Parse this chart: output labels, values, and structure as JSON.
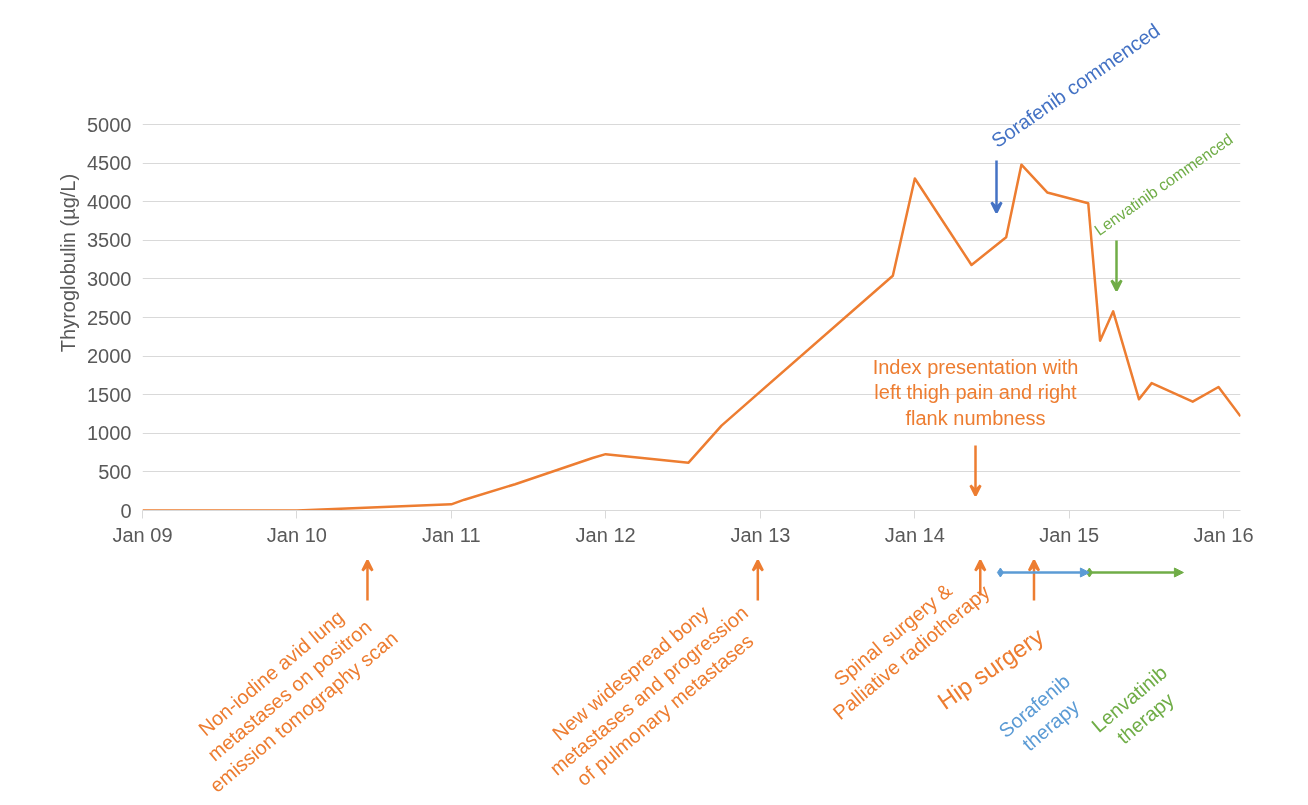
{
  "chart_data": {
    "type": "line",
    "ylabel": "Thyroglobulin (µg/L)",
    "x": [
      "2009-01-01",
      "2010-01-01",
      "2011-01-01",
      "2011-02-01",
      "2011-06-01",
      "2011-12-01",
      "2012-01-01",
      "2012-07-15",
      "2012-10-01",
      "2013-11-10",
      "2014-01-01",
      "2014-05-15",
      "2014-08-05",
      "2014-09-10",
      "2014-11-10",
      "2015-02-15",
      "2015-03-15",
      "2015-04-15",
      "2015-06-15",
      "2015-07-15",
      "2015-10-20",
      "2015-12-20",
      "2016-02-10"
    ],
    "series": [
      {
        "color": "#ed7d31",
        "values": [
          0,
          0,
          80,
          140,
          340,
          680,
          730,
          620,
          1100,
          3040,
          4300,
          3180,
          3540,
          4480,
          4120,
          3980,
          2200,
          2580,
          1440,
          1650,
          1410,
          1600,
          1220
        ]
      }
    ],
    "xlim": [
      "2009-01-01",
      "2016-02-10"
    ],
    "xticks": [
      {
        "value": "2009-01-01",
        "label": "Jan 09"
      },
      {
        "value": "2010-01-01",
        "label": "Jan 10"
      },
      {
        "value": "2011-01-01",
        "label": "Jan 11"
      },
      {
        "value": "2012-01-01",
        "label": "Jan 12"
      },
      {
        "value": "2013-01-01",
        "label": "Jan 13"
      },
      {
        "value": "2014-01-01",
        "label": "Jan 14"
      },
      {
        "value": "2015-01-01",
        "label": "Jan 15"
      },
      {
        "value": "2016-01-01",
        "label": "Jan 16"
      }
    ],
    "ylim": [
      0,
      5000
    ],
    "yticks": [
      0,
      500,
      1000,
      1500,
      2000,
      2500,
      3000,
      3500,
      4000,
      4500,
      5000
    ],
    "grid": "y",
    "annotations": [
      "Sorafenib commenced",
      "Lenvatinib commenced",
      "Index presentation with\nleft thigh pain and right\nflank numbness",
      "Non-iodine  avid lung\nmetastases on positron\nemission  tomography scan",
      "New widespread  bony\nmetastases and progression\nof pulmonary metastases",
      "Spinal  surgery &\nPalliative radiotherapy",
      "Hip surgery",
      "Sorafenib\ntherapy",
      "Lenvatinib\ntherapy"
    ]
  }
}
